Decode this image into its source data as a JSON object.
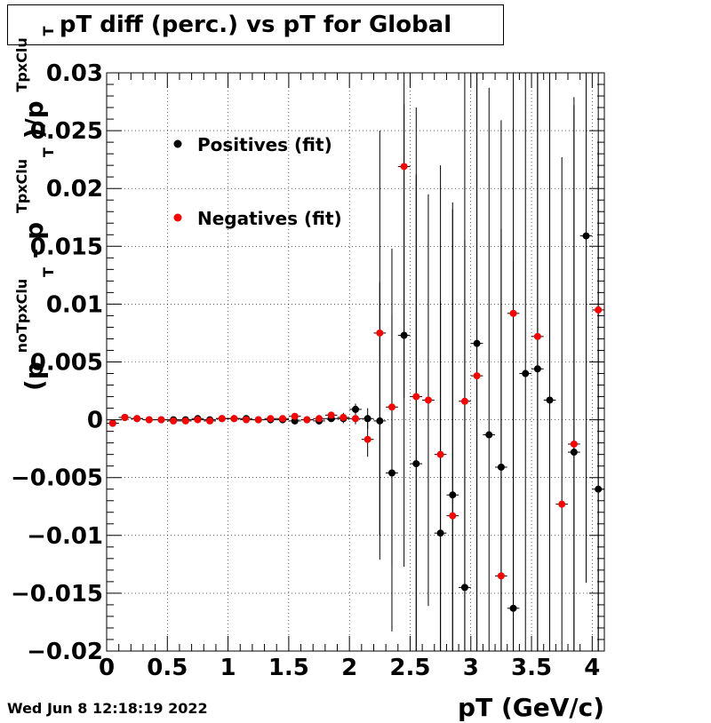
{
  "chart_data": {
    "type": "scatter",
    "title": "pT diff (perc.) vs pT for Global",
    "xlabel": "pT (GeV/c)",
    "ylabel": {
      "open": "(p",
      "sup1": "noTpxClu",
      "sub1": "T",
      "mid": " - p",
      "sup2": "TpxClu",
      "sub2": "T",
      "mid2": ")/p",
      "sup3": "TpxClu",
      "sub3": "T"
    },
    "xlim": [
      0,
      4.1
    ],
    "ylim": [
      -0.02,
      0.03
    ],
    "x_ticks": [
      0,
      0.5,
      1,
      1.5,
      2,
      2.5,
      3,
      3.5,
      4
    ],
    "x_tick_labels": [
      "0",
      "0.5",
      "1",
      "1.5",
      "2",
      "2.5",
      "3",
      "3.5",
      "4"
    ],
    "y_ticks": [
      -0.02,
      -0.015,
      -0.01,
      -0.005,
      0,
      0.005,
      0.01,
      0.015,
      0.02,
      0.025,
      0.03
    ],
    "y_tick_labels": [
      "−0.02",
      "−0.015",
      "−0.01",
      "−0.005",
      "0",
      "0.005",
      "0.01",
      "0.015",
      "0.02",
      "0.025",
      "0.03"
    ],
    "grid": true,
    "legend_position": "top-left",
    "series": [
      {
        "name": "Positives (fit)",
        "color": "#000000",
        "x": [
          0.05,
          0.15,
          0.25,
          0.35,
          0.45,
          0.55,
          0.65,
          0.75,
          0.85,
          0.95,
          1.05,
          1.15,
          1.25,
          1.35,
          1.45,
          1.55,
          1.65,
          1.75,
          1.85,
          1.95,
          2.05,
          2.15,
          2.25,
          2.35,
          2.45,
          2.55,
          2.65,
          2.75,
          2.85,
          2.95,
          3.05,
          3.15,
          3.25,
          3.35,
          3.45,
          3.55,
          3.65,
          3.75,
          3.85,
          3.95,
          4.05
        ],
        "y": [
          -0.0003,
          0.0002,
          0.0001,
          0.0,
          0.0,
          0.0,
          0.0,
          0.0001,
          0.0,
          0.0001,
          0.0001,
          0.0001,
          0.0,
          0.0,
          0.0,
          -0.0001,
          0.0,
          -0.0001,
          0.0001,
          0.0001,
          0.0009,
          0.0001,
          -0.0001,
          -0.0046,
          0.0073,
          -0.0038,
          null,
          -0.0098,
          -0.0065,
          -0.0145,
          0.0066,
          -0.0013,
          -0.0041,
          -0.0163,
          0.004,
          0.0044,
          0.0017,
          null,
          -0.0028,
          0.0159,
          -0.006
        ],
        "y_err": [
          0.0001,
          0.0001,
          0.0001,
          0.0001,
          0.0001,
          0.0001,
          0.0001,
          0.0001,
          0.0001,
          0.0001,
          0.0001,
          0.0001,
          0.0001,
          0.0001,
          0.0002,
          0.0002,
          0.0002,
          0.0003,
          0.0003,
          0.0004,
          0.0005,
          0.0009,
          0.012,
          0.0137,
          0.02,
          0.025,
          null,
          0.02,
          0.0253,
          0.03,
          0.03,
          0.03,
          0.03,
          0.03,
          0.03,
          0.03,
          0.03,
          null,
          0.03,
          0.03,
          0.03
        ]
      },
      {
        "name": "Negatives (fit)",
        "color": "#ff0000",
        "x": [
          0.05,
          0.15,
          0.25,
          0.35,
          0.45,
          0.55,
          0.65,
          0.75,
          0.85,
          0.95,
          1.05,
          1.15,
          1.25,
          1.35,
          1.45,
          1.55,
          1.65,
          1.75,
          1.85,
          1.95,
          2.05,
          2.15,
          2.25,
          2.35,
          2.45,
          2.55,
          2.65,
          2.75,
          2.85,
          2.95,
          3.05,
          3.15,
          3.25,
          3.35,
          3.45,
          3.55,
          3.65,
          3.75,
          3.85,
          3.95,
          4.05
        ],
        "y": [
          -0.0003,
          0.0002,
          0.0001,
          0.0,
          0.0,
          -0.0001,
          -0.0001,
          0.0,
          -0.0001,
          0.0001,
          0.0001,
          0.0,
          0.0,
          0.0001,
          0.0001,
          0.0003,
          0.0,
          0.0001,
          0.0004,
          0.0002,
          0.0001,
          -0.0017,
          0.0075,
          0.0011,
          0.0219,
          0.002,
          0.0017,
          -0.003,
          -0.0083,
          0.0016,
          0.0038,
          null,
          -0.0135,
          0.0092,
          null,
          0.0072,
          null,
          -0.0073,
          -0.0021,
          null,
          0.0095
        ],
        "y_err": [
          0.0001,
          0.0001,
          0.0001,
          0.0001,
          0.0001,
          0.0001,
          0.0001,
          0.0001,
          0.0001,
          0.0001,
          0.0001,
          0.0001,
          0.0001,
          0.0001,
          0.0002,
          0.0002,
          0.0002,
          0.0003,
          0.0003,
          0.0004,
          0.0005,
          0.0015,
          0.0175,
          0.0137,
          0.02,
          0.025,
          0.0178,
          0.025,
          0.0265,
          0.03,
          0.03,
          null,
          0.03,
          0.03,
          null,
          0.03,
          null,
          0.03,
          0.03,
          null,
          0.03
        ]
      }
    ]
  },
  "footer": {
    "timestamp": "Wed Jun  8 12:18:19 2022"
  }
}
